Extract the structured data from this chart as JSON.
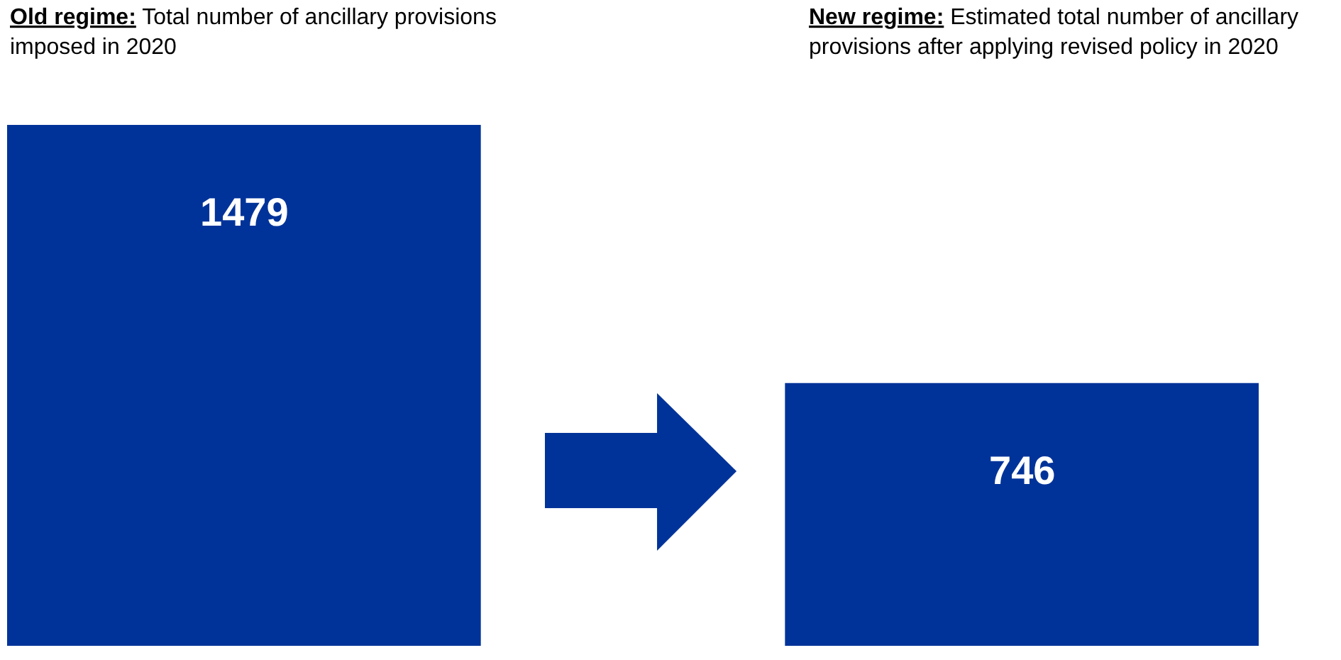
{
  "chart_data": {
    "type": "bar",
    "categories": [
      "Old regime: Total number of ancillary provisions imposed in 2020",
      "New regime: Estimated total number of ancillary provisions after applying revised policy in 2020"
    ],
    "values": [
      1479,
      746
    ],
    "color": "#003399",
    "data_labels": true
  }
}
